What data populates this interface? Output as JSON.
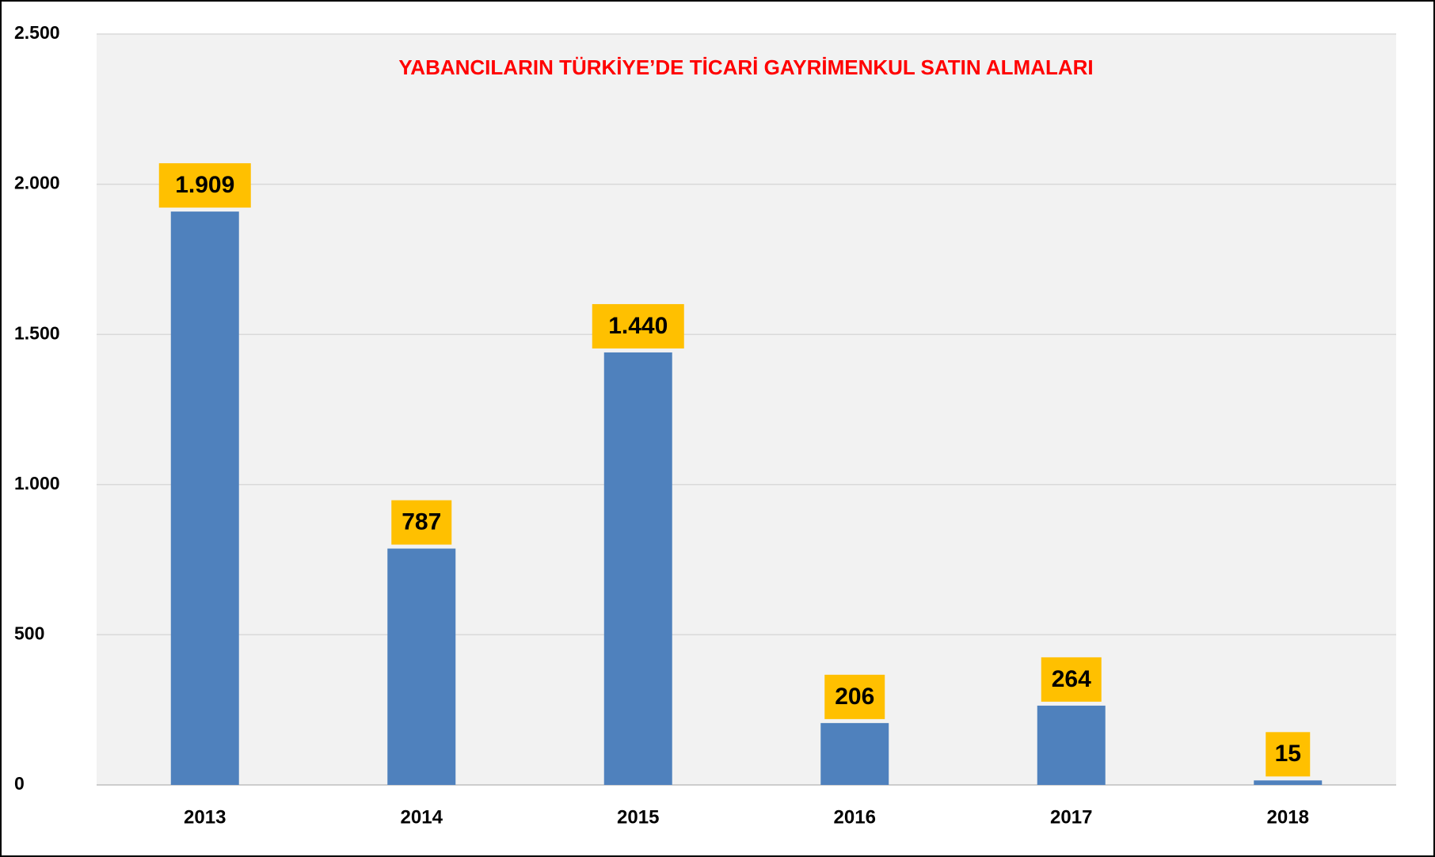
{
  "chart_data": {
    "type": "bar",
    "title": "YABANCILARIN TÜRKİYE’DE TİCARİ GAYRİMENKUL SATIN ALMALARI",
    "categories": [
      "2013",
      "2014",
      "2015",
      "2016",
      "2017",
      "2018"
    ],
    "values": [
      1909,
      787,
      1440,
      206,
      264,
      15
    ],
    "value_labels": [
      "1.909",
      "787",
      "1.440",
      "206",
      "264",
      "15"
    ],
    "color": "#4f81bd",
    "label_color": "#ffc000",
    "title_color": "#ff0000",
    "ylim": [
      0,
      2500
    ],
    "yticks": [
      0,
      500,
      {
        "value": 1000,
        "label": "1.000"
      },
      {
        "value": 1500,
        "label": "1.500"
      },
      {
        "value": 2000,
        "label": "2.000"
      },
      {
        "value": 2500,
        "label": "2.500"
      }
    ],
    "grid": true
  }
}
